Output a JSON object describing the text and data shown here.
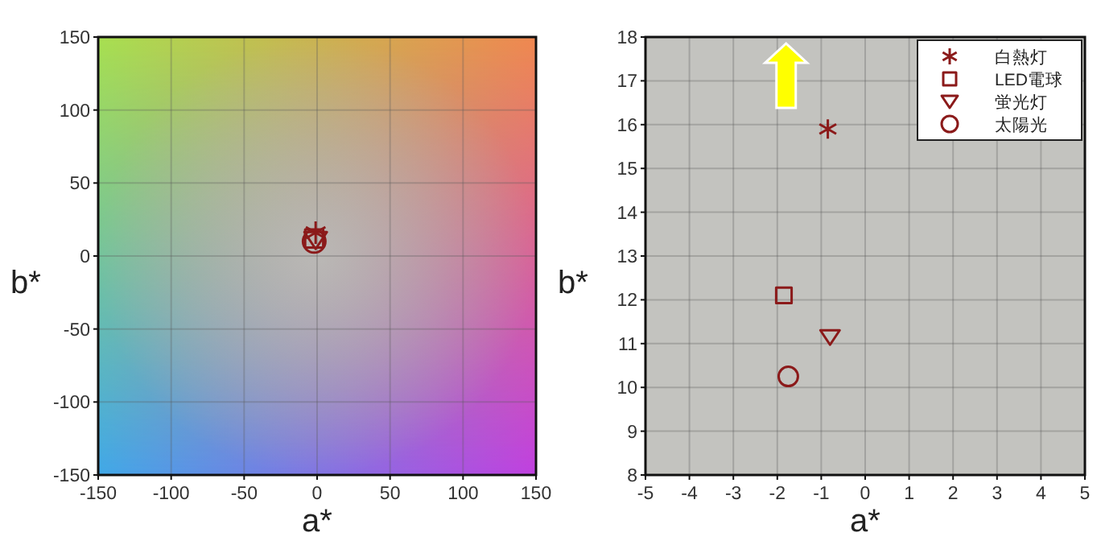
{
  "chart_data": [
    {
      "type": "scatter",
      "xlabel": "a*",
      "ylabel": "b*",
      "xlim": [
        -150,
        150
      ],
      "ylim": [
        -150,
        150
      ],
      "xticks": [
        -150,
        -100,
        -50,
        0,
        50,
        100,
        150
      ],
      "yticks": [
        -150,
        -100,
        -50,
        0,
        50,
        100,
        150
      ],
      "grid": true,
      "series": [
        {
          "marker": "cross",
          "color": "#8b1a1a",
          "x": [
            -1
          ],
          "values": [
            16
          ]
        },
        {
          "marker": "square",
          "color": "#8b1a1a",
          "x": [
            -2
          ],
          "values": [
            12
          ]
        },
        {
          "marker": "triangle",
          "color": "#8b1a1a",
          "x": [
            -1
          ],
          "values": [
            11
          ]
        },
        {
          "marker": "circle",
          "color": "#8b1a1a",
          "x": [
            -2
          ],
          "values": [
            10
          ]
        }
      ]
    },
    {
      "type": "scatter",
      "xlabel": "a*",
      "ylabel": "b*",
      "xlim": [
        -5,
        5
      ],
      "ylim": [
        8,
        18
      ],
      "xticks": [
        -5,
        -4,
        -3,
        -2,
        -1,
        0,
        1,
        2,
        3,
        4,
        5
      ],
      "yticks": [
        8,
        9,
        10,
        11,
        12,
        13,
        14,
        15,
        16,
        17,
        18
      ],
      "grid": true,
      "legend": "top right",
      "series": [
        {
          "name": "白熱灯",
          "marker": "cross",
          "color": "#8b1a1a",
          "x": [
            -0.85
          ],
          "values": [
            15.9
          ]
        },
        {
          "name": "LED電球",
          "marker": "square",
          "color": "#8b1a1a",
          "x": [
            -1.85
          ],
          "values": [
            12.1
          ]
        },
        {
          "name": "蛍光灯",
          "marker": "triangle",
          "color": "#8b1a1a",
          "x": [
            -0.8
          ],
          "values": [
            11.15
          ]
        },
        {
          "name": "太陽光",
          "marker": "circle",
          "color": "#8b1a1a",
          "x": [
            -1.75
          ],
          "values": [
            10.25
          ]
        }
      ]
    }
  ]
}
